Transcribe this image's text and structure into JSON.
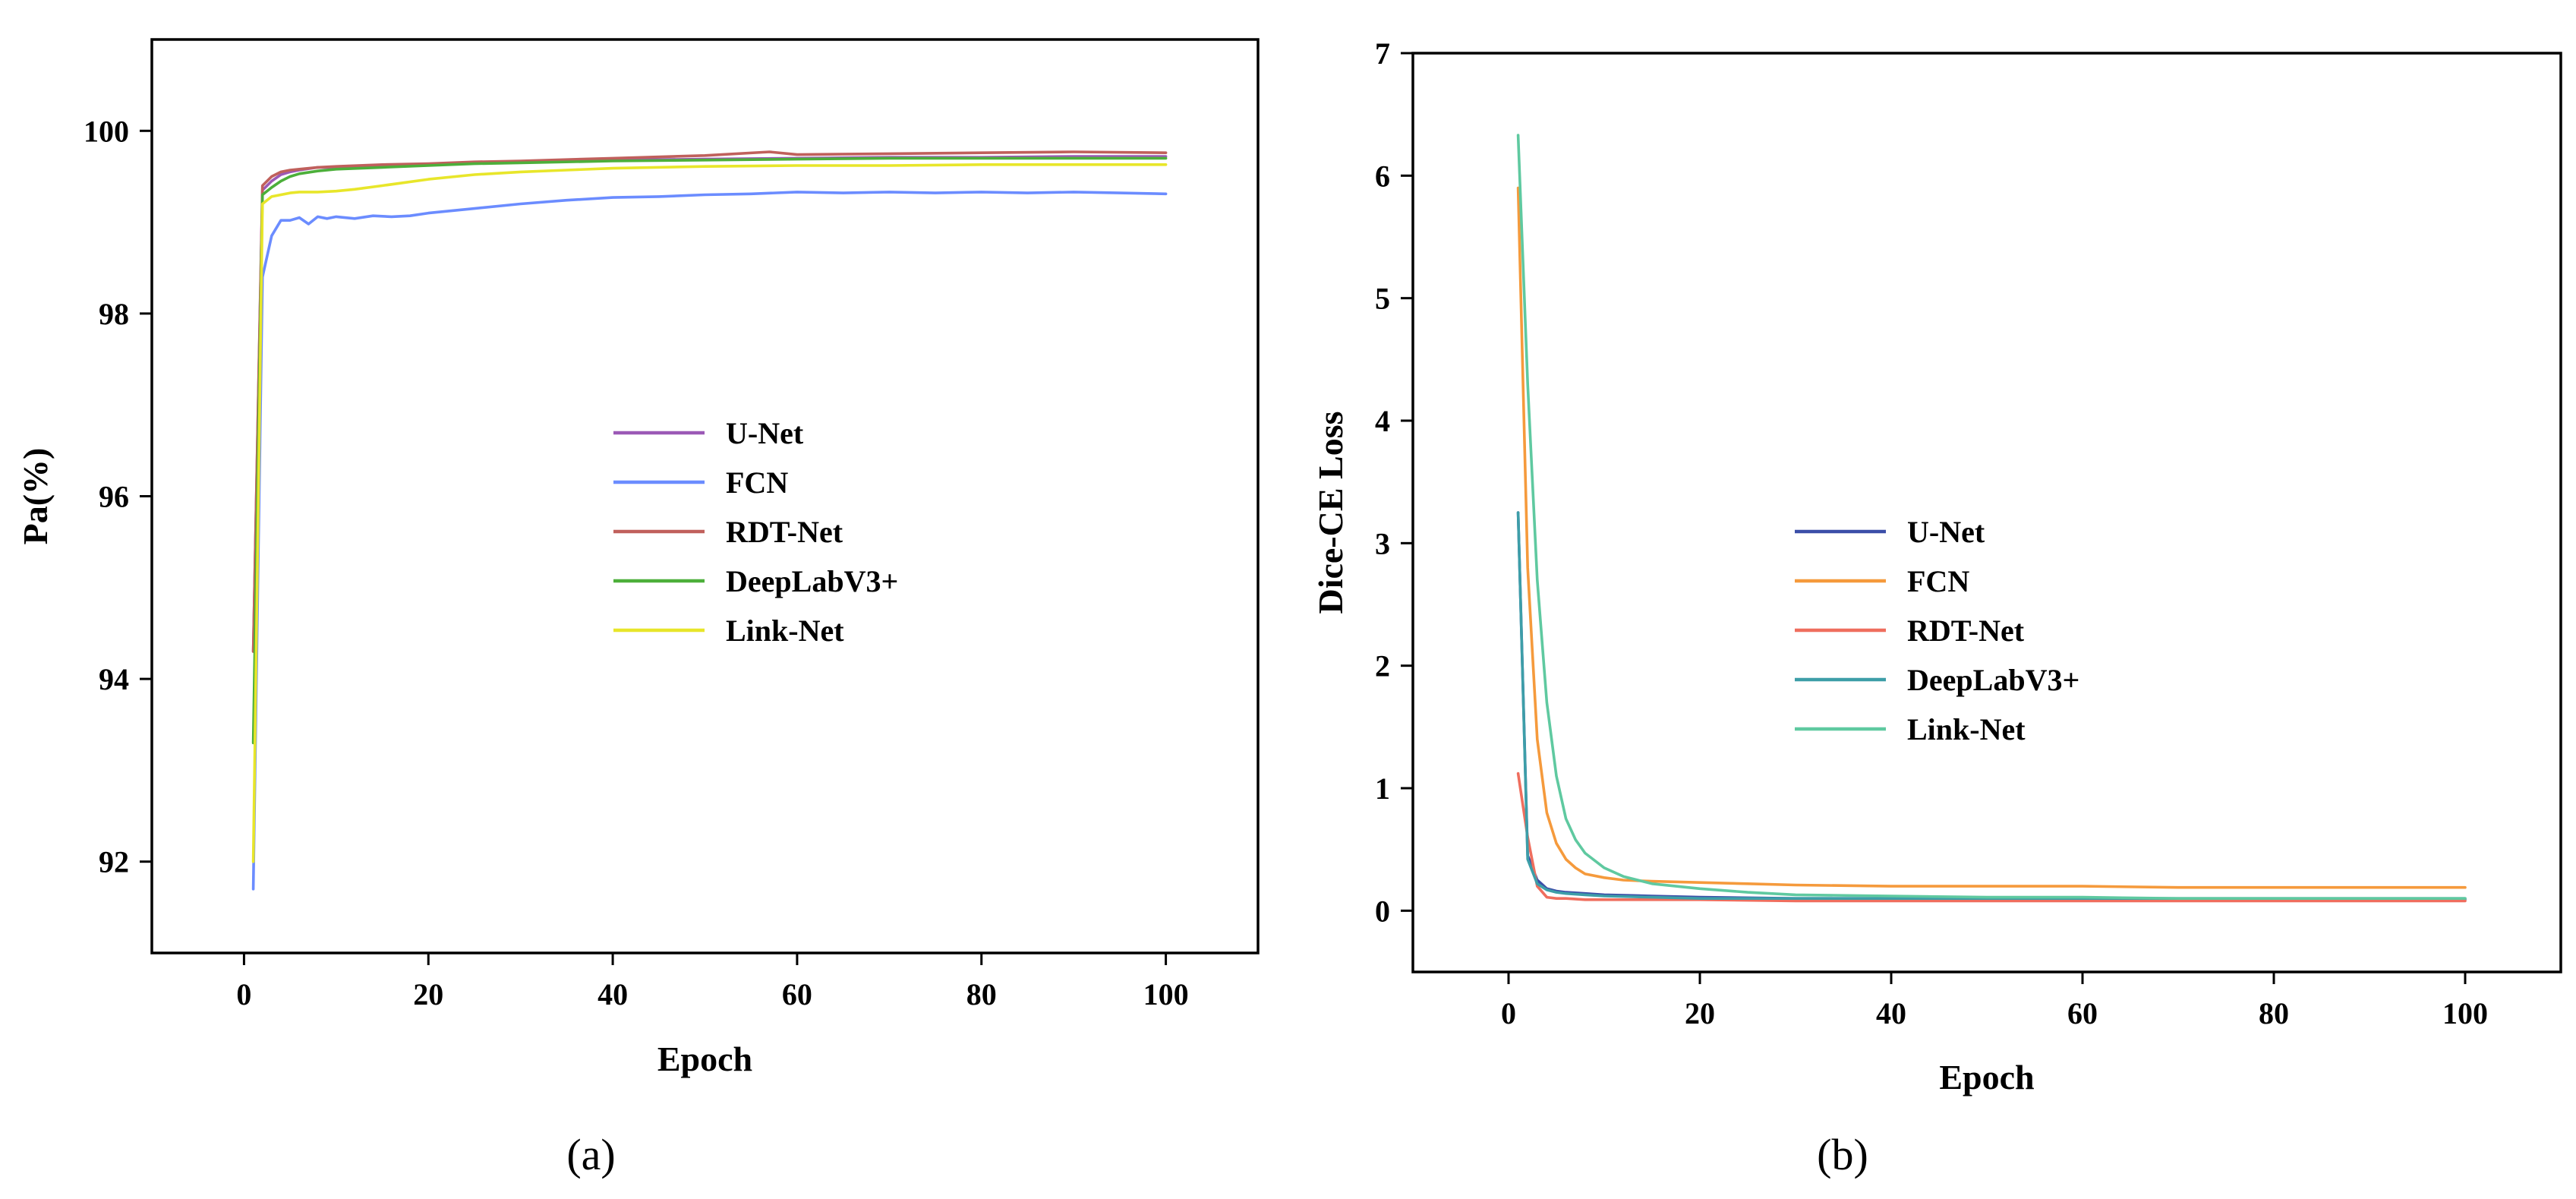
{
  "chart_data": [
    {
      "type": "line",
      "panel_label": "(a)",
      "xlabel": "Epoch",
      "ylabel": "Pa(%)",
      "xlim": [
        -10,
        110
      ],
      "ylim": [
        91,
        101
      ],
      "xticks": [
        0,
        20,
        40,
        60,
        80,
        100
      ],
      "yticks": [
        92,
        94,
        96,
        98,
        100
      ],
      "legend_position": "center",
      "series": [
        {
          "name": "U-Net",
          "color": "#9b59b6",
          "x": [
            1,
            2,
            3,
            4,
            5,
            6,
            8,
            10,
            15,
            20,
            25,
            30,
            40,
            50,
            60,
            70,
            80,
            90,
            100
          ],
          "y": [
            94.3,
            99.35,
            99.45,
            99.52,
            99.55,
            99.57,
            99.6,
            99.6,
            99.62,
            99.63,
            99.65,
            99.66,
            99.68,
            99.69,
            99.7,
            99.71,
            99.71,
            99.72,
            99.72
          ]
        },
        {
          "name": "FCN",
          "color": "#6b8cff",
          "x": [
            1,
            2,
            3,
            4,
            5,
            6,
            7,
            8,
            9,
            10,
            12,
            14,
            16,
            18,
            20,
            25,
            30,
            35,
            40,
            45,
            50,
            55,
            60,
            65,
            70,
            75,
            80,
            85,
            90,
            95,
            100
          ],
          "y": [
            91.7,
            98.4,
            98.85,
            99.02,
            99.02,
            99.05,
            98.98,
            99.06,
            99.04,
            99.06,
            99.04,
            99.07,
            99.06,
            99.07,
            99.1,
            99.15,
            99.2,
            99.24,
            99.27,
            99.28,
            99.3,
            99.31,
            99.33,
            99.32,
            99.33,
            99.32,
            99.33,
            99.32,
            99.33,
            99.32,
            99.31
          ]
        },
        {
          "name": "RDT-Net",
          "color": "#c0605c",
          "x": [
            1,
            2,
            3,
            4,
            5,
            6,
            8,
            10,
            15,
            20,
            25,
            30,
            40,
            50,
            57,
            60,
            70,
            80,
            90,
            100
          ],
          "y": [
            94.3,
            99.4,
            99.5,
            99.55,
            99.57,
            99.58,
            99.6,
            99.61,
            99.63,
            99.64,
            99.66,
            99.67,
            99.7,
            99.73,
            99.77,
            99.74,
            99.75,
            99.76,
            99.77,
            99.76
          ]
        },
        {
          "name": "DeepLabV3+",
          "color": "#4caf3a",
          "x": [
            1,
            2,
            3,
            4,
            5,
            6,
            8,
            10,
            15,
            20,
            25,
            30,
            40,
            50,
            60,
            70,
            80,
            90,
            100
          ],
          "y": [
            93.3,
            99.3,
            99.38,
            99.45,
            99.5,
            99.53,
            99.56,
            99.58,
            99.6,
            99.62,
            99.64,
            99.65,
            99.67,
            99.68,
            99.69,
            99.7,
            99.7,
            99.7,
            99.7
          ]
        },
        {
          "name": "Link-Net",
          "color": "#e8e62a",
          "x": [
            1,
            2,
            3,
            4,
            5,
            6,
            8,
            10,
            12,
            15,
            20,
            25,
            30,
            35,
            40,
            50,
            60,
            70,
            80,
            90,
            100
          ],
          "y": [
            92.0,
            99.2,
            99.28,
            99.3,
            99.32,
            99.33,
            99.33,
            99.34,
            99.36,
            99.4,
            99.47,
            99.52,
            99.55,
            99.57,
            99.59,
            99.61,
            99.62,
            99.62,
            99.63,
            99.63,
            99.63
          ]
        }
      ]
    },
    {
      "type": "line",
      "panel_label": "(b)",
      "xlabel": "Epoch",
      "ylabel": "Dice-CE Loss",
      "xlim": [
        -10,
        110
      ],
      "ylim": [
        -0.5,
        7
      ],
      "xticks": [
        0,
        20,
        40,
        60,
        80,
        100
      ],
      "yticks": [
        0,
        1,
        2,
        3,
        4,
        5,
        6,
        7
      ],
      "legend_position": "center",
      "series": [
        {
          "name": "U-Net",
          "color": "#3b4ea8",
          "x": [
            1,
            2,
            3,
            4,
            5,
            6,
            8,
            10,
            15,
            20,
            30,
            40,
            60,
            80,
            100
          ],
          "y": [
            3.25,
            0.45,
            0.25,
            0.18,
            0.16,
            0.15,
            0.14,
            0.13,
            0.12,
            0.11,
            0.1,
            0.1,
            0.09,
            0.09,
            0.09
          ]
        },
        {
          "name": "FCN",
          "color": "#f59a3c",
          "x": [
            1,
            2,
            3,
            4,
            5,
            6,
            7,
            8,
            10,
            12,
            15,
            20,
            25,
            30,
            40,
            50,
            60,
            70,
            80,
            90,
            100
          ],
          "y": [
            5.9,
            2.8,
            1.4,
            0.8,
            0.55,
            0.42,
            0.35,
            0.3,
            0.27,
            0.25,
            0.24,
            0.23,
            0.22,
            0.21,
            0.2,
            0.2,
            0.2,
            0.19,
            0.19,
            0.19,
            0.19
          ]
        },
        {
          "name": "RDT-Net",
          "color": "#ef6e5e",
          "x": [
            1,
            2,
            3,
            4,
            5,
            6,
            8,
            10,
            15,
            20,
            30,
            40,
            60,
            80,
            100
          ],
          "y": [
            1.12,
            0.6,
            0.2,
            0.11,
            0.1,
            0.1,
            0.09,
            0.09,
            0.09,
            0.09,
            0.08,
            0.08,
            0.08,
            0.08,
            0.08
          ]
        },
        {
          "name": "DeepLabV3+",
          "color": "#3d9ea8",
          "x": [
            1,
            2,
            3,
            4,
            5,
            6,
            8,
            10,
            15,
            20,
            30,
            40,
            60,
            80,
            100
          ],
          "y": [
            3.25,
            0.42,
            0.22,
            0.17,
            0.15,
            0.14,
            0.13,
            0.12,
            0.11,
            0.1,
            0.1,
            0.1,
            0.1,
            0.1,
            0.1
          ]
        },
        {
          "name": "Link-Net",
          "color": "#5fc9a0",
          "x": [
            1,
            2,
            3,
            4,
            5,
            6,
            7,
            8,
            10,
            12,
            15,
            20,
            25,
            30,
            40,
            50,
            60,
            70,
            80,
            90,
            100
          ],
          "y": [
            6.33,
            4.3,
            2.7,
            1.7,
            1.1,
            0.75,
            0.58,
            0.47,
            0.35,
            0.28,
            0.22,
            0.18,
            0.15,
            0.13,
            0.12,
            0.11,
            0.11,
            0.1,
            0.1,
            0.1,
            0.1
          ]
        }
      ]
    }
  ]
}
